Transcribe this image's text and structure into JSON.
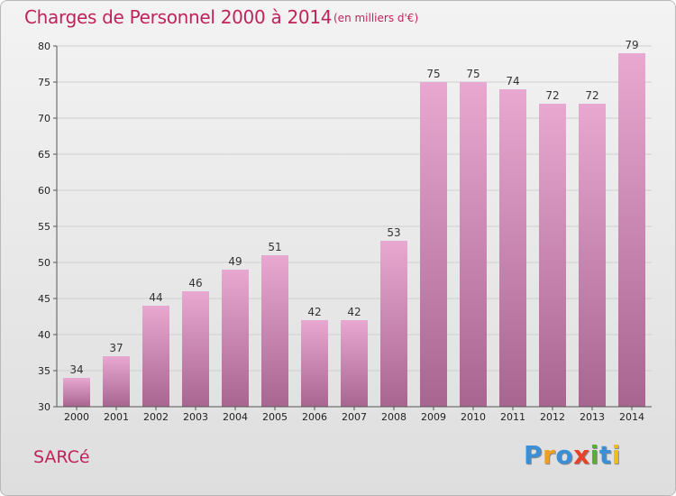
{
  "header": {
    "title": "Charges de Personnel 2000 à 2014",
    "subtitle": "(en milliers d'€)"
  },
  "footer": {
    "town": "SARCé",
    "logo_letters": [
      {
        "char": "P",
        "color": "#3a8fd6"
      },
      {
        "char": "r",
        "color": "#f0a020"
      },
      {
        "char": "o",
        "color": "#3a8fd6"
      },
      {
        "char": "x",
        "color": "#e8432a"
      },
      {
        "char": "i",
        "color": "#55b030"
      },
      {
        "char": "t",
        "color": "#3a8fd6"
      },
      {
        "char": "i",
        "color": "#e8c020"
      }
    ]
  },
  "colors": {
    "accent": "#c0235b",
    "bar_top": "#e8a8d0",
    "bar_bottom": "#a86590",
    "grid": "#cfcfcf",
    "axis": "#555555"
  },
  "chart_data": {
    "type": "bar",
    "title": "Charges de Personnel 2000 à 2014",
    "subtitle": "(en milliers d'€)",
    "xlabel": "",
    "ylabel": "",
    "categories": [
      "2000",
      "2001",
      "2002",
      "2003",
      "2004",
      "2005",
      "2006",
      "2007",
      "2008",
      "2009",
      "2010",
      "2011",
      "2012",
      "2013",
      "2014"
    ],
    "values": [
      34,
      37,
      44,
      46,
      49,
      51,
      42,
      42,
      53,
      75,
      75,
      74,
      72,
      72,
      79
    ],
    "ylim": [
      30,
      80
    ],
    "yticks": [
      30,
      35,
      40,
      45,
      50,
      55,
      60,
      65,
      70,
      75,
      80
    ],
    "grid": "horizontal",
    "legend": "none"
  }
}
